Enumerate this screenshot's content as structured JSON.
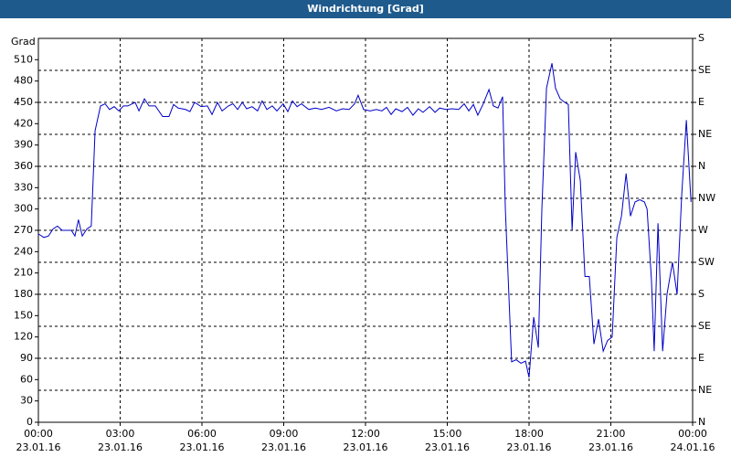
{
  "chart_data": {
    "type": "line",
    "title": "Windrichtung [Grad]",
    "ylabel": "Grad",
    "x": [
      0,
      0.2,
      0.37,
      0.54,
      0.7,
      0.87,
      1.21,
      1.34,
      1.47,
      1.61,
      1.78,
      1.94,
      2.08,
      2.28,
      2.45,
      2.61,
      2.78,
      2.95,
      3.12,
      3.28,
      3.55,
      3.69,
      3.89,
      4.06,
      4.29,
      4.56,
      4.79,
      4.96,
      5.13,
      5.4,
      5.56,
      5.73,
      5.97,
      6.2,
      6.37,
      6.57,
      6.74,
      6.97,
      7.14,
      7.31,
      7.48,
      7.64,
      7.84,
      8.04,
      8.21,
      8.38,
      8.58,
      8.75,
      8.98,
      9.15,
      9.32,
      9.49,
      9.65,
      9.92,
      10.16,
      10.39,
      10.66,
      10.93,
      11.16,
      11.4,
      11.6,
      11.73,
      11.93,
      12.17,
      12.4,
      12.6,
      12.77,
      12.94,
      13.11,
      13.34,
      13.54,
      13.74,
      13.94,
      14.11,
      14.35,
      14.55,
      14.72,
      14.95,
      15.18,
      15.42,
      15.62,
      15.79,
      15.96,
      16.12,
      16.32,
      16.53,
      16.69,
      16.86,
      17.03,
      17.13,
      17.36,
      17.53,
      17.7,
      17.87,
      18.0,
      18.17,
      18.34,
      18.47,
      18.64,
      18.84,
      18.97,
      19.14,
      19.31,
      19.44,
      19.58,
      19.71,
      19.88,
      20.05,
      20.21,
      20.38,
      20.55,
      20.72,
      20.88,
      21.05,
      21.22,
      21.39,
      21.56,
      21.72,
      21.89,
      22.06,
      22.23,
      22.33,
      22.49,
      22.59,
      22.73,
      22.9,
      23.06,
      23.26,
      23.43,
      23.6,
      23.77,
      23.94
    ],
    "series": [
      {
        "name": "Windrichtung",
        "color": "#0000c8",
        "values": [
          265,
          260,
          262,
          272,
          276,
          270,
          270,
          262,
          285,
          262,
          272,
          276,
          410,
          445,
          448,
          440,
          444,
          438,
          445,
          445,
          450,
          438,
          455,
          445,
          445,
          430,
          430,
          447,
          442,
          440,
          437,
          450,
          444,
          445,
          433,
          450,
          438,
          445,
          448,
          440,
          450,
          441,
          444,
          438,
          452,
          440,
          445,
          438,
          448,
          437,
          452,
          444,
          448,
          440,
          442,
          440,
          443,
          438,
          441,
          440,
          448,
          460,
          440,
          438,
          440,
          438,
          443,
          433,
          441,
          437,
          443,
          432,
          441,
          436,
          444,
          436,
          442,
          440,
          441,
          440,
          448,
          438,
          447,
          432,
          448,
          468,
          445,
          442,
          458,
          300,
          85,
          88,
          83,
          86,
          63,
          148,
          105,
          300,
          470,
          505,
          470,
          455,
          450,
          447,
          270,
          380,
          340,
          205,
          205,
          110,
          145,
          100,
          115,
          120,
          260,
          290,
          350,
          290,
          310,
          313,
          310,
          300,
          200,
          100,
          280,
          100,
          180,
          225,
          180,
          320,
          425,
          310
        ]
      }
    ],
    "xlim": [
      0,
      24
    ],
    "xticks": [
      {
        "value": 0,
        "label": "00:00\n23.01.16"
      },
      {
        "value": 3,
        "label": "03:00\n23.01.16"
      },
      {
        "value": 6,
        "label": "06:00\n23.01.16"
      },
      {
        "value": 9,
        "label": "09:00\n23.01.16"
      },
      {
        "value": 12,
        "label": "12:00\n23.01.16"
      },
      {
        "value": 15,
        "label": "15:00\n23.01.16"
      },
      {
        "value": 18,
        "label": "18:00\n23.01.16"
      },
      {
        "value": 21,
        "label": "21:00\n23.01.16"
      },
      {
        "value": 24,
        "label": "00:00\n24.01.16"
      }
    ],
    "ylim": [
      0,
      540
    ],
    "yticks": [
      0,
      30,
      60,
      90,
      120,
      150,
      180,
      210,
      240,
      270,
      300,
      330,
      360,
      390,
      420,
      450,
      480,
      510
    ],
    "y2lim": [
      0,
      540
    ],
    "y2ticks": [
      {
        "value": 0,
        "label": "N"
      },
      {
        "value": 45,
        "label": "NE"
      },
      {
        "value": 90,
        "label": "E"
      },
      {
        "value": 135,
        "label": "SE"
      },
      {
        "value": 180,
        "label": "S"
      },
      {
        "value": 225,
        "label": "SW"
      },
      {
        "value": 270,
        "label": "W"
      },
      {
        "value": 315,
        "label": "NW"
      },
      {
        "value": 360,
        "label": "N"
      },
      {
        "value": 405,
        "label": "NE"
      },
      {
        "value": 450,
        "label": "E"
      },
      {
        "value": 495,
        "label": "SE"
      },
      {
        "value": 540,
        "label": "S"
      }
    ],
    "grid": true
  }
}
